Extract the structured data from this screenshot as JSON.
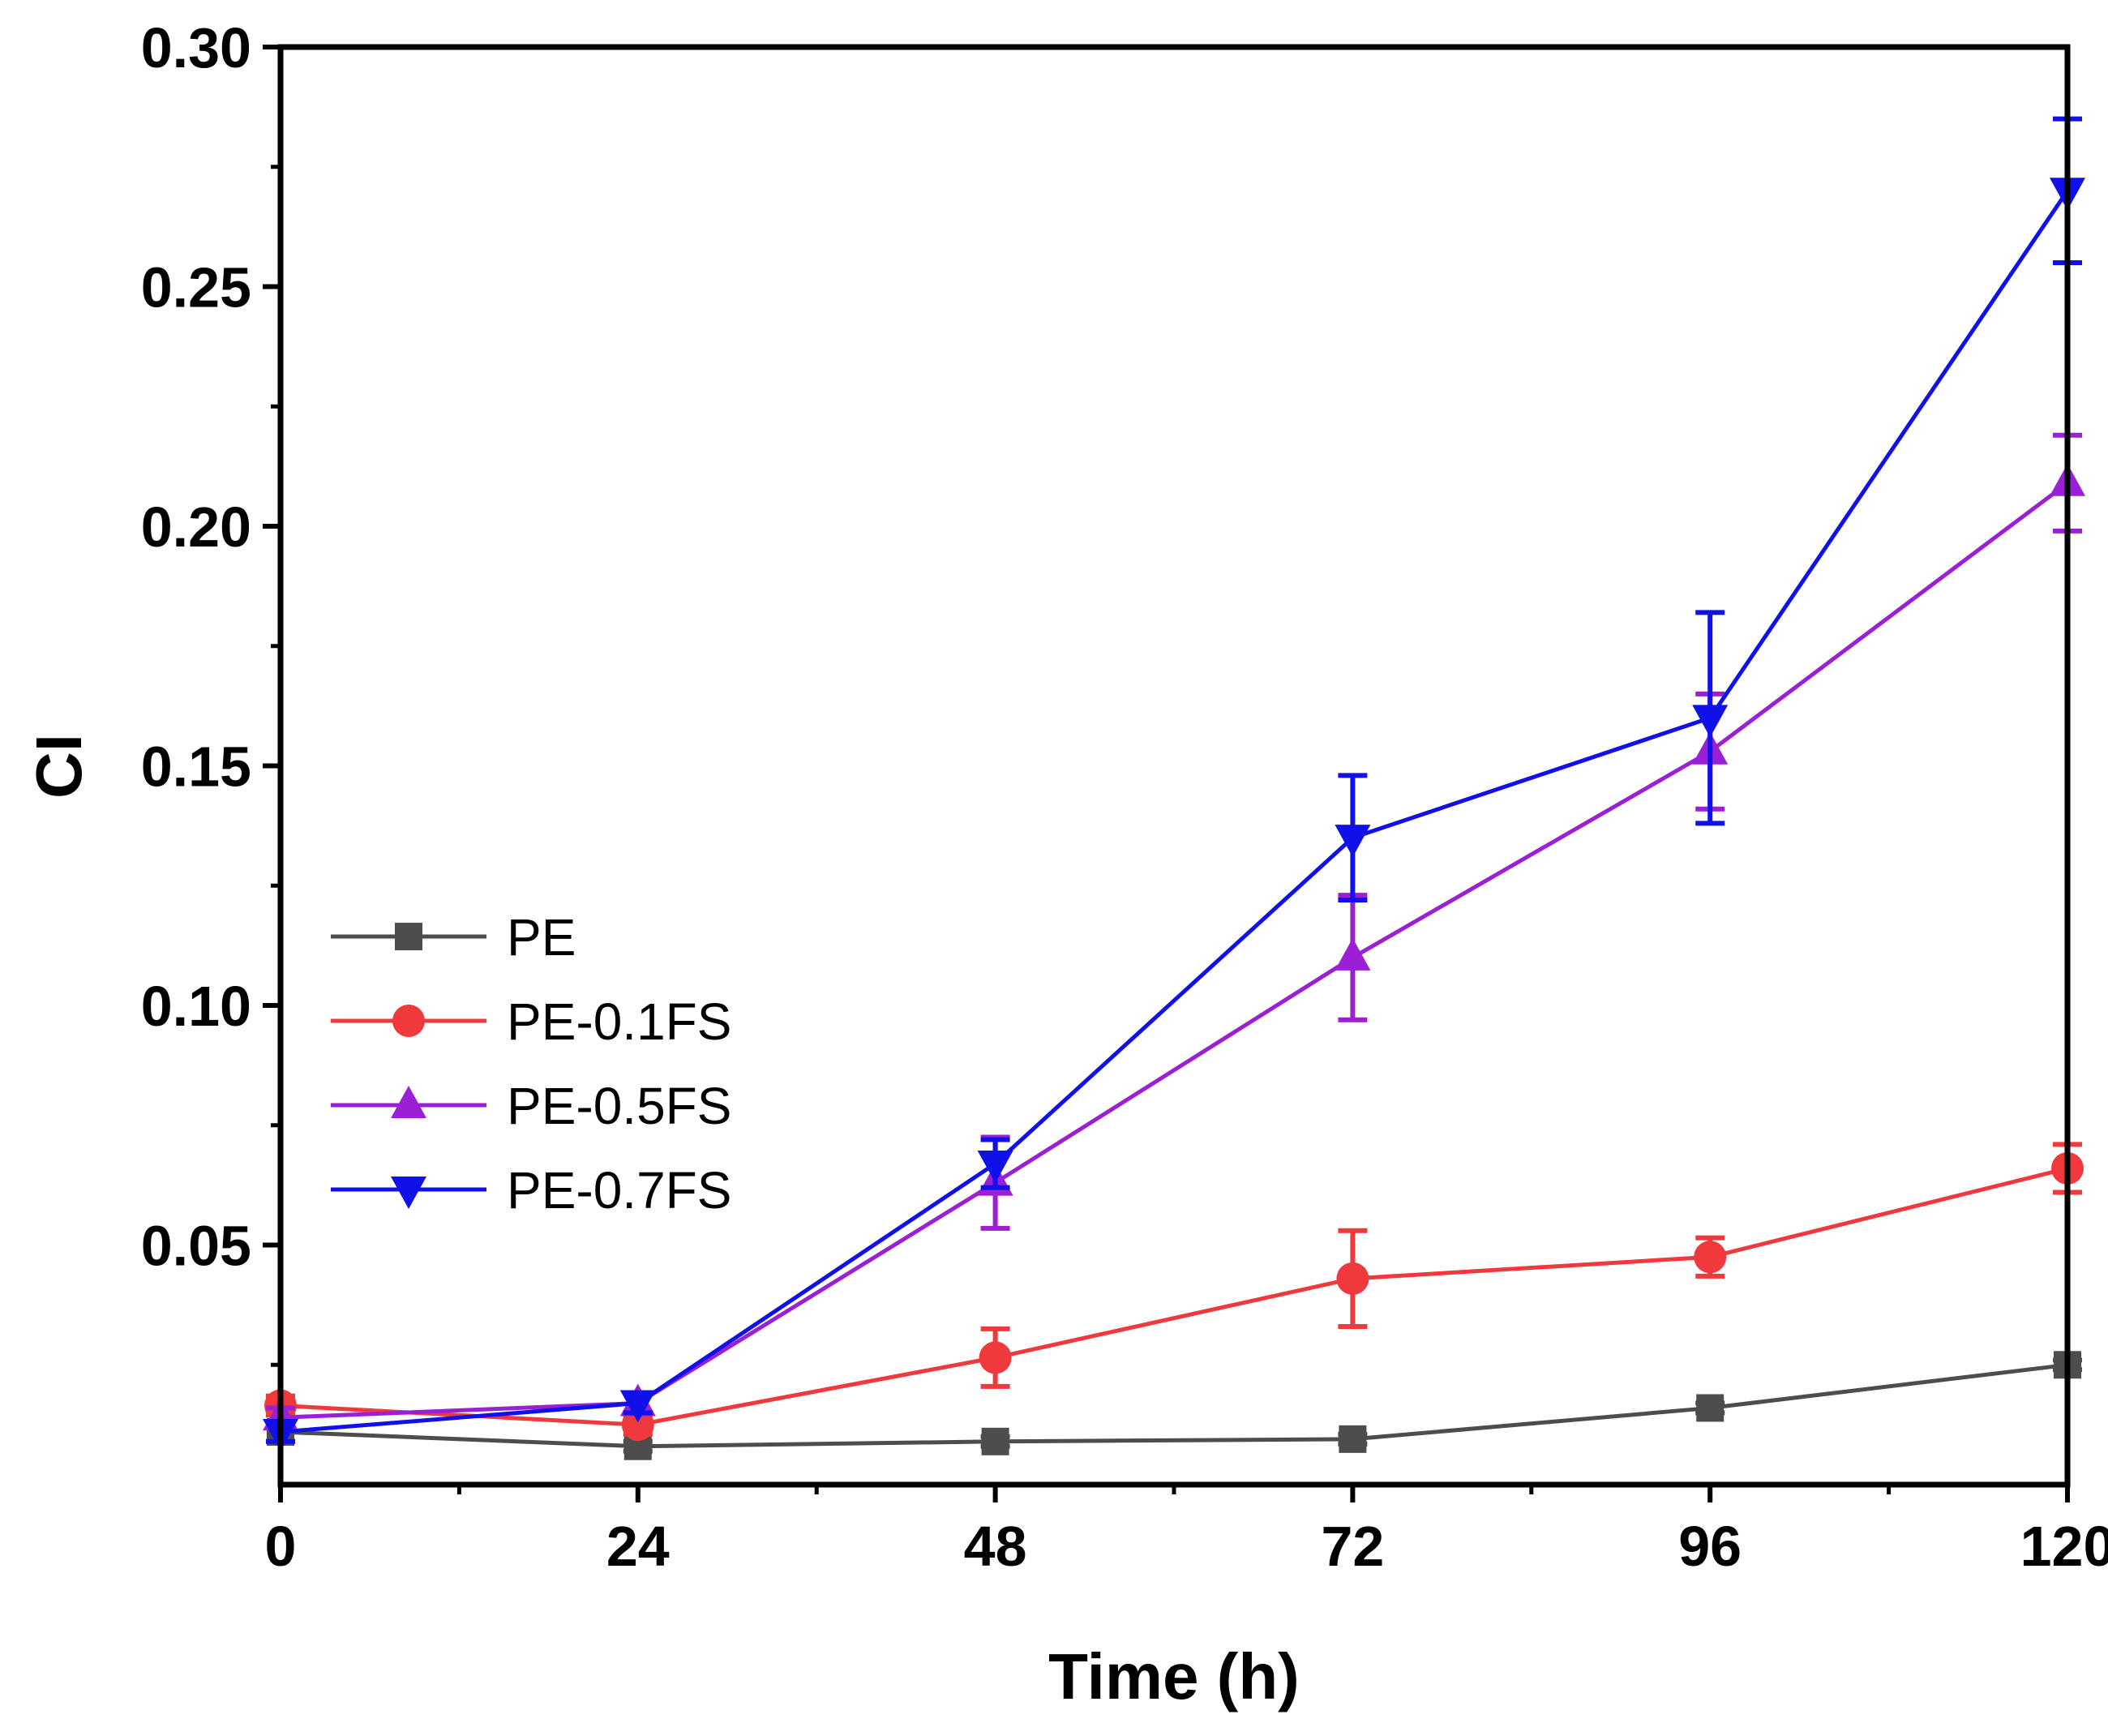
{
  "chart_data": {
    "type": "line",
    "title": "",
    "xlabel": "Time (h)",
    "ylabel": "CI",
    "xlim": [
      0,
      120
    ],
    "ylim": [
      0.0,
      0.3
    ],
    "x": [
      0,
      24,
      48,
      72,
      96,
      120
    ],
    "x_ticks": [
      "0",
      "24",
      "48",
      "72",
      "96",
      "120"
    ],
    "y_ticks": [
      "0.05",
      "0.10",
      "0.15",
      "0.20",
      "0.25",
      "0.30"
    ],
    "legend_position": "center-left",
    "series": [
      {
        "name": "PE",
        "color": "#4d4d4d",
        "marker": "square",
        "values": [
          0.011,
          0.008,
          0.009,
          0.0095,
          0.016,
          0.025
        ],
        "errors": [
          0.002,
          0.001,
          0.001,
          0.001,
          0.001,
          0.001
        ]
      },
      {
        "name": "PE-0.1FS",
        "color": "#f0393c",
        "marker": "circle",
        "values": [
          0.0165,
          0.0125,
          0.0265,
          0.043,
          0.0475,
          0.066
        ],
        "errors": [
          0.002,
          0.002,
          0.006,
          0.01,
          0.004,
          0.005
        ]
      },
      {
        "name": "PE-0.5FS",
        "color": "#9b1fd4",
        "marker": "triangle-up",
        "values": [
          0.014,
          0.017,
          0.063,
          0.11,
          0.153,
          0.209
        ],
        "errors": [
          0.002,
          0.002,
          0.0095,
          0.013,
          0.012,
          0.01
        ]
      },
      {
        "name": "PE-0.7FS",
        "color": "#1010e8",
        "marker": "triangle-down",
        "values": [
          0.011,
          0.017,
          0.067,
          0.135,
          0.16,
          0.27
        ],
        "errors": [
          0.002,
          0.002,
          0.005,
          0.013,
          0.022,
          0.015
        ]
      }
    ]
  }
}
